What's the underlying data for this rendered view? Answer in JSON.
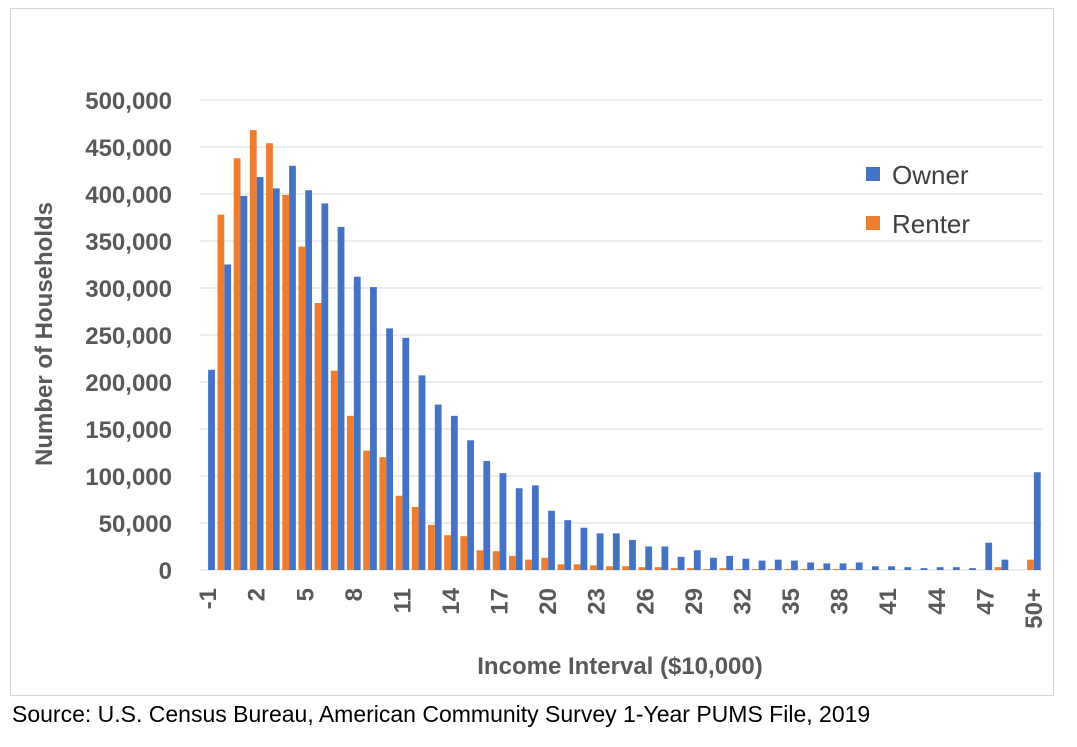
{
  "chart_data": {
    "type": "bar",
    "xlabel": "Income Interval ($10,000)",
    "ylabel": "Number of Households",
    "ylim": [
      0,
      500000
    ],
    "yticks": [
      0,
      50000,
      100000,
      150000,
      200000,
      250000,
      300000,
      350000,
      400000,
      450000,
      500000
    ],
    "ytick_labels": [
      "0",
      "50,000",
      "100,000",
      "150,000",
      "200,000",
      "250,000",
      "300,000",
      "350,000",
      "400,000",
      "450,000",
      "500,000"
    ],
    "grid": true,
    "legend_position": "top-right",
    "categories": [
      "-1",
      "0",
      "1",
      "2",
      "3",
      "4",
      "5",
      "6",
      "7",
      "8",
      "9",
      "10",
      "11",
      "12",
      "13",
      "14",
      "15",
      "16",
      "17",
      "18",
      "19",
      "20",
      "21",
      "22",
      "23",
      "24",
      "25",
      "26",
      "27",
      "28",
      "29",
      "30",
      "31",
      "32",
      "33",
      "34",
      "35",
      "36",
      "37",
      "38",
      "39",
      "40",
      "41",
      "42",
      "43",
      "44",
      "45",
      "46",
      "47",
      "48",
      "49",
      "50+"
    ],
    "tick_labels": [
      "-1",
      "2",
      "5",
      "8",
      "11",
      "14",
      "17",
      "20",
      "23",
      "26",
      "29",
      "32",
      "35",
      "38",
      "41",
      "44",
      "47",
      "50+"
    ],
    "tick_categories": [
      "-1",
      "2",
      "5",
      "8",
      "11",
      "14",
      "17",
      "20",
      "23",
      "26",
      "29",
      "32",
      "35",
      "38",
      "41",
      "44",
      "47",
      "50+"
    ],
    "series": [
      {
        "name": "Owner",
        "color": "#4472c4",
        "values": [
          213000,
          325000,
          398000,
          418000,
          406000,
          430000,
          404000,
          390000,
          365000,
          312000,
          301000,
          257000,
          247000,
          207000,
          176000,
          164000,
          138000,
          116000,
          103000,
          87000,
          90000,
          63000,
          53000,
          45000,
          39000,
          39000,
          32000,
          25000,
          25000,
          14000,
          21000,
          13000,
          15000,
          12000,
          10000,
          11000,
          10000,
          8000,
          7000,
          7000,
          8000,
          4000,
          4000,
          3000,
          2000,
          3000,
          3000,
          2000,
          29000,
          11000,
          0,
          104000
        ]
      },
      {
        "name": "Renter",
        "color": "#ed7d31",
        "values": [
          0,
          378000,
          438000,
          468000,
          454000,
          399000,
          344000,
          284000,
          212000,
          164000,
          127000,
          120000,
          79000,
          67000,
          48000,
          37000,
          36000,
          21000,
          20000,
          15000,
          11000,
          13000,
          6000,
          6000,
          5000,
          4000,
          4000,
          3000,
          3000,
          2000,
          2000,
          1000,
          2000,
          1000,
          1000,
          1000,
          1000,
          1000,
          1000,
          1000,
          1000,
          0,
          0,
          0,
          0,
          0,
          0,
          0,
          0,
          3000,
          0,
          11000
        ]
      }
    ]
  },
  "source": "Source: U.S. Census Bureau, American Community Survey 1-Year PUMS File, 2019"
}
